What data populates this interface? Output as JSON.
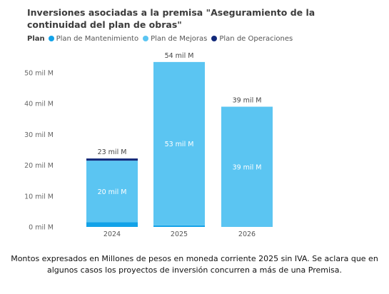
{
  "chart_data": {
    "type": "bar",
    "stacked": true,
    "title": "Inversiones asociadas a la premisa \"Aseguramiento de la continuidad del plan de obras\"",
    "legend_title": "Plan",
    "legend_position": "top-left",
    "categories": [
      "2024",
      "2025",
      "2026"
    ],
    "series": [
      {
        "name": "Plan de Mantenimiento",
        "color": "#12a2e8",
        "values": [
          1.5,
          0.5,
          0
        ]
      },
      {
        "name": "Plan de Mejoras",
        "color": "#5bc5f2",
        "values": [
          20,
          53,
          39
        ]
      },
      {
        "name": "Plan de Operaciones",
        "color": "#12297a",
        "values": [
          0.7,
          0,
          0
        ]
      }
    ],
    "segment_labels": [
      {
        "category": "2024",
        "series": "Plan de Mejoras",
        "text": "20 mil M"
      },
      {
        "category": "2025",
        "series": "Plan de Mejoras",
        "text": "53 mil M"
      },
      {
        "category": "2026",
        "series": "Plan de Mejoras",
        "text": "39 mil M"
      }
    ],
    "total_labels": [
      "23 mil M",
      "54 mil M",
      "39 mil M"
    ],
    "yticks": [
      0,
      10,
      20,
      30,
      40,
      50
    ],
    "ytick_labels": [
      "0 mil M",
      "10 mil M",
      "20 mil M",
      "30 mil M",
      "40 mil M",
      "50 mil M"
    ],
    "ylim": [
      0,
      54
    ],
    "grid": false,
    "xlabel": "",
    "ylabel": ""
  },
  "footnote": {
    "line1": "Montos expresados en Millones de pesos en moneda corriente 2025 sin IVA. Se aclara que en",
    "line2": "algunos casos los proyectos de inversión concurren a más de una Premisa."
  }
}
